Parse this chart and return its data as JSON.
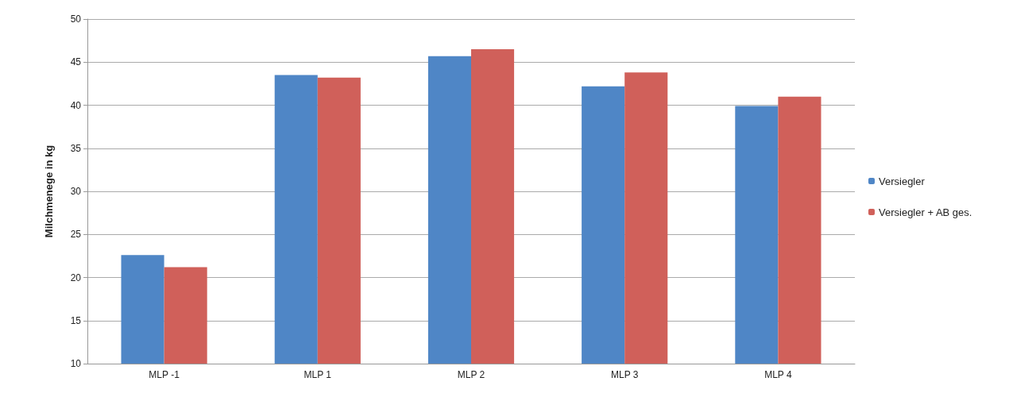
{
  "chart_data": {
    "type": "bar",
    "ylabel": "Milchmenege in kg",
    "categories": [
      "MLP -1",
      "MLP 1",
      "MLP 2",
      "MLP 3",
      "MLP 4"
    ],
    "series": [
      {
        "name": "Versiegler",
        "color": "#4f86c6",
        "values": [
          22.6,
          43.5,
          45.7,
          42.2,
          39.9
        ]
      },
      {
        "name": "Versiegler + AB ges.",
        "color": "#d0605a",
        "values": [
          21.2,
          43.2,
          46.5,
          43.8,
          41.0
        ]
      }
    ],
    "ylim": [
      10,
      50
    ],
    "yticks": [
      10,
      15,
      20,
      25,
      30,
      35,
      40,
      45,
      50
    ],
    "grid": "y",
    "legend": "right"
  }
}
